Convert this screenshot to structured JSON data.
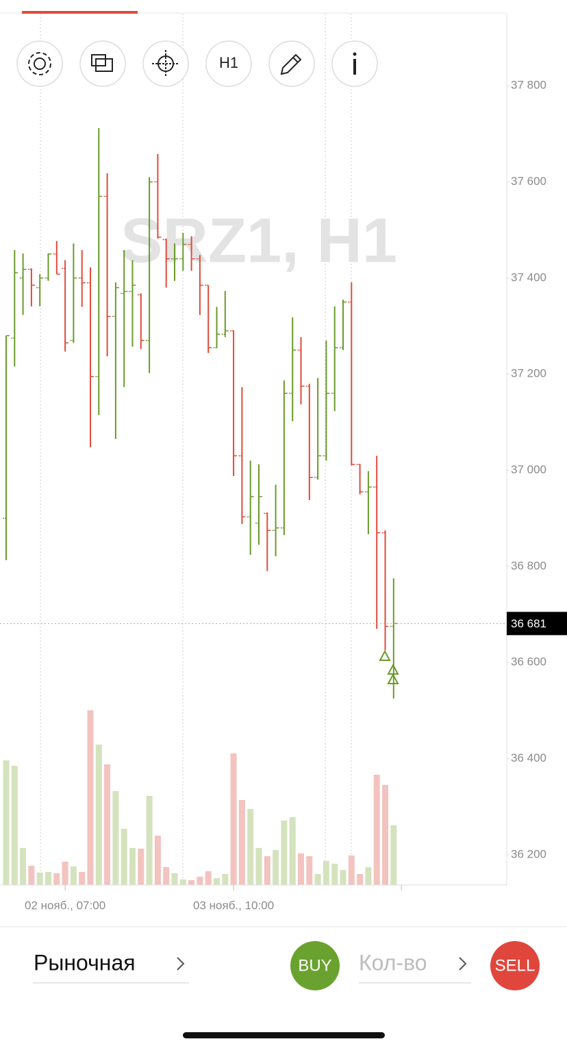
{
  "chart_data": {
    "type": "ohlc",
    "watermark": "SRZ1, H1",
    "categories": [
      null,
      null,
      null,
      null,
      null,
      null,
      null,
      "02 нояб., 07:00",
      null,
      null,
      null,
      null,
      null,
      null,
      null,
      null,
      null,
      null,
      null,
      null,
      null,
      null,
      null,
      null,
      null,
      null,
      null,
      "03 нояб., 10:00",
      null,
      null,
      null,
      null,
      null,
      null,
      null,
      null,
      null,
      null,
      null,
      null,
      null,
      null,
      null,
      null,
      null,
      null,
      null
    ],
    "ohlc": [
      [
        36900,
        37280,
        36813,
        37280
      ],
      [
        37275,
        37458,
        37216,
        37411
      ],
      [
        37400,
        37451,
        37323,
        37418
      ],
      [
        37418,
        37420,
        37341,
        37385
      ],
      [
        37380,
        37408,
        37341,
        37400
      ],
      [
        37400,
        37451,
        37394,
        37450
      ],
      [
        37450,
        37477,
        37408,
        37408
      ],
      [
        37420,
        37437,
        37247,
        37265
      ],
      [
        37270,
        37472,
        37265,
        37400
      ],
      [
        37400,
        37458,
        37340,
        37390
      ],
      [
        37390,
        37422,
        37048,
        37195
      ],
      [
        37195,
        37712,
        37115,
        37570
      ],
      [
        37570,
        37618,
        37237,
        37320
      ],
      [
        37320,
        37391,
        37065,
        37380
      ],
      [
        37368,
        37458,
        37173,
        37372
      ],
      [
        37372,
        37437,
        37257,
        37385
      ],
      [
        37365,
        37368,
        37252,
        37270
      ],
      [
        37270,
        37610,
        37202,
        37600
      ],
      [
        37600,
        37658,
        37482,
        37485
      ],
      [
        37480,
        37482,
        37380,
        37440
      ],
      [
        37440,
        37472,
        37394,
        37440
      ],
      [
        37440,
        37494,
        37415,
        37470
      ],
      [
        37470,
        37487,
        37415,
        37440
      ],
      [
        37440,
        37448,
        37323,
        37385
      ],
      [
        37385,
        37385,
        37244,
        37255
      ],
      [
        37255,
        37340,
        37254,
        37283
      ],
      [
        37283,
        37373,
        37277,
        37290
      ],
      [
        37290,
        37291,
        36988,
        37030
      ],
      [
        37030,
        37173,
        36888,
        36903
      ],
      [
        36903,
        37020,
        36824,
        36945
      ],
      [
        36890,
        37012,
        36845,
        36945
      ],
      [
        36910,
        36912,
        36790,
        36875
      ],
      [
        36875,
        36970,
        36821,
        36880
      ],
      [
        36880,
        37187,
        36865,
        37160
      ],
      [
        37160,
        37318,
        37102,
        37250
      ],
      [
        37250,
        37277,
        37137,
        37175
      ],
      [
        37175,
        37180,
        36938,
        36985
      ],
      [
        36985,
        37192,
        36980,
        37030
      ],
      [
        37030,
        37270,
        37020,
        37160
      ],
      [
        37160,
        37341,
        37123,
        37255
      ],
      [
        37255,
        37355,
        37250,
        37350
      ],
      [
        37350,
        37391,
        37010,
        37012
      ],
      [
        37012,
        37013,
        36950,
        36955
      ],
      [
        36955,
        36998,
        36867,
        36965
      ],
      [
        36965,
        37030,
        36670,
        36870
      ],
      [
        36870,
        36875,
        36625,
        36675
      ],
      [
        36675,
        36775,
        36525,
        36681
      ]
    ],
    "volume": [
      182,
      174,
      54,
      28,
      18,
      19,
      17,
      34,
      27,
      19,
      255,
      205,
      176,
      137,
      82,
      54,
      53,
      130,
      72,
      26,
      17,
      8,
      7,
      12,
      20,
      10,
      16,
      192,
      124,
      111,
      54,
      42,
      51,
      94,
      99,
      46,
      42,
      16,
      35,
      31,
      22,
      43,
      16,
      26,
      161,
      146,
      87
    ],
    "up_color": "#6a9a2a",
    "down_color": "#e04a3a",
    "up_volume_color": "#d4e3bd",
    "down_volume_color": "#f3c3bf",
    "ylim": [
      36137,
      37950
    ],
    "yticks": [
      {
        "value": 37800,
        "label": "37 800"
      },
      {
        "value": 37600,
        "label": "37 600"
      },
      {
        "value": 37400,
        "label": "37 400"
      },
      {
        "value": 37200,
        "label": "37 200"
      },
      {
        "value": 37000,
        "label": "37 000"
      },
      {
        "value": 36800,
        "label": "36 800"
      },
      {
        "value": 36600,
        "label": "36 600"
      },
      {
        "value": 36400,
        "label": "36 400"
      },
      {
        "value": 36200,
        "label": "36 200"
      }
    ],
    "y2lim": [
      0,
      1272
    ],
    "last_price": {
      "value": 36681,
      "label": "36 681"
    }
  },
  "ui": {
    "timeframe": "H1",
    "order_type": "Рыночная",
    "buy": "BUY",
    "quantity_placeholder": "Кол-во",
    "sell": "SELL"
  }
}
